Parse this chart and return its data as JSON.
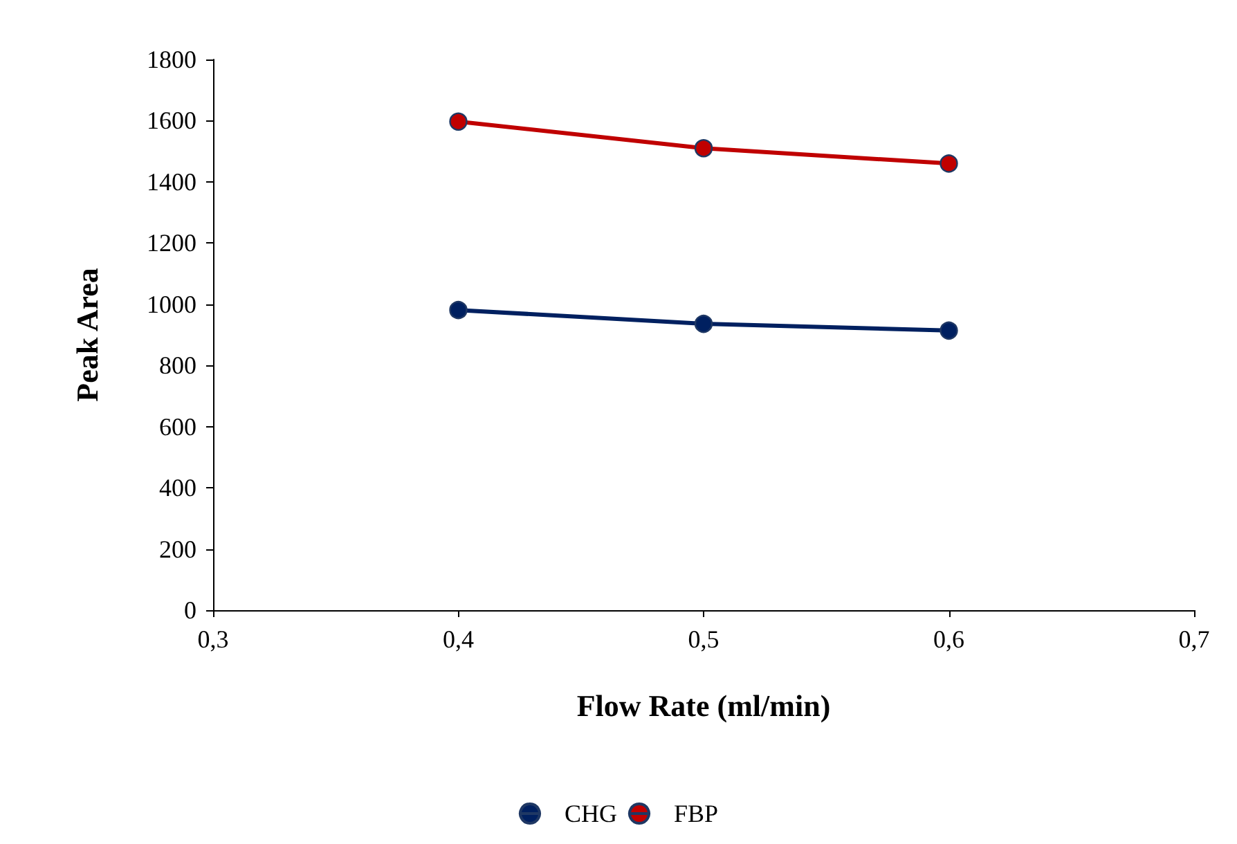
{
  "chart_data": {
    "type": "line",
    "xlabel": "Flow Rate (ml/min)",
    "ylabel": "Peak Area",
    "x": [
      0.4,
      0.5,
      0.6
    ],
    "series": [
      {
        "name": "CHG",
        "color": "#002060",
        "values": [
          981,
          936,
          914
        ]
      },
      {
        "name": "FBP",
        "color": "#c00000",
        "values": [
          1597,
          1510,
          1460
        ]
      }
    ],
    "xlim": [
      0.3,
      0.7
    ],
    "xticks": [
      {
        "value": 0.3,
        "label": "0,3"
      },
      {
        "value": 0.4,
        "label": "0,4"
      },
      {
        "value": 0.5,
        "label": "0,5"
      },
      {
        "value": 0.6,
        "label": "0,6"
      },
      {
        "value": 0.7,
        "label": "0,7"
      }
    ],
    "ylim": [
      0,
      1800
    ],
    "yticks": [
      0,
      200,
      400,
      600,
      800,
      1000,
      1200,
      1400,
      1600,
      1800
    ],
    "grid": false,
    "legend": "bottom",
    "marker": "circle",
    "line_style": "solid"
  }
}
